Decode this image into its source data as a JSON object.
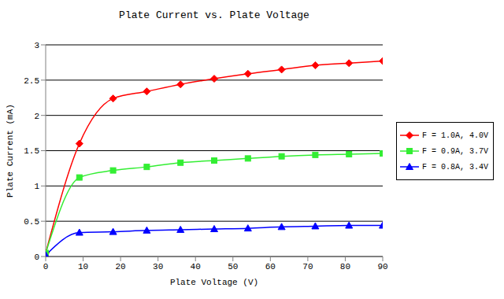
{
  "chart_data": {
    "type": "line",
    "title": "Plate Current vs. Plate Voltage",
    "x_label": "Plate Voltage (V)",
    "y_label": "Plate Current (mA)",
    "x": [
      0,
      9,
      18,
      27,
      36,
      45,
      54,
      63,
      72,
      81,
      90
    ],
    "series": [
      {
        "name": "F = 1.0A, 4.0V",
        "color": "#ff0000",
        "marker": "diamond",
        "line_style": "smooth",
        "values": [
          0.05,
          1.6,
          2.24,
          2.34,
          2.44,
          2.52,
          2.59,
          2.65,
          2.71,
          2.74,
          2.77
        ]
      },
      {
        "name": "F = 0.9A, 3.7V",
        "color": "#33ee33",
        "marker": "square",
        "line_style": "smooth",
        "values": [
          0.05,
          1.12,
          1.22,
          1.27,
          1.33,
          1.36,
          1.39,
          1.42,
          1.44,
          1.45,
          1.46
        ]
      },
      {
        "name": "F = 0.8A, 3.4V",
        "color": "#0000ff",
        "marker": "triangle",
        "line_style": "smooth",
        "values": [
          0.02,
          0.34,
          0.35,
          0.37,
          0.38,
          0.39,
          0.4,
          0.42,
          0.43,
          0.44,
          0.44
        ]
      }
    ],
    "xlim": [
      0,
      90
    ],
    "xticks": [
      0,
      10,
      20,
      30,
      40,
      50,
      60,
      70,
      80,
      90
    ],
    "ylim": [
      0,
      3
    ],
    "yticks": [
      0,
      0.5,
      1,
      1.5,
      2,
      2.5,
      3
    ],
    "grid": true,
    "legend": "right"
  }
}
